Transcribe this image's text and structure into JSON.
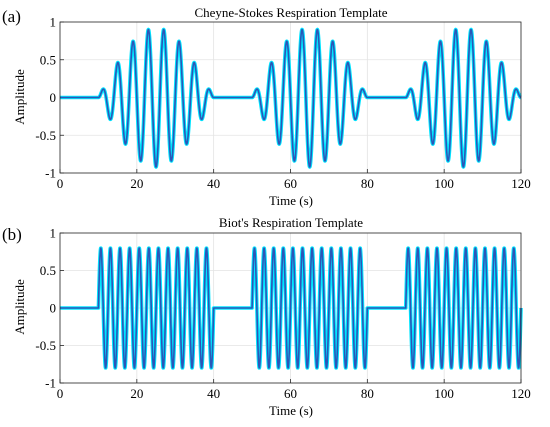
{
  "chart_data": [
    {
      "type": "line",
      "panel_label": "(a)",
      "title": "Cheyne-Stokes Respiration Template",
      "xlabel": "Time (s)",
      "ylabel": "Amplitude",
      "xlim": [
        0,
        120
      ],
      "ylim": [
        -1,
        1
      ],
      "xticks": [
        0,
        20,
        40,
        60,
        80,
        100,
        120
      ],
      "yticks": [
        -1,
        -0.5,
        0,
        0.5,
        1
      ],
      "xtick_labels": [
        "0",
        "20",
        "40",
        "60",
        "80",
        "100",
        "120"
      ],
      "ytick_labels": [
        "-1",
        "-0.5",
        "0",
        "0.5",
        "1"
      ],
      "grid": true,
      "series": [
        {
          "color": "#2b56b8",
          "highlight_color": "#00e5ff",
          "pattern": "crescendo-decrescendo sine bursts, 3 cycles",
          "burst_intervals": [
            [
              10,
              40
            ],
            [
              50,
              80
            ],
            [
              90,
              120
            ]
          ],
          "oscillation_period": 4.0,
          "peak_amplitude": 0.92,
          "baseline": 0
        }
      ]
    },
    {
      "type": "line",
      "panel_label": "(b)",
      "title": "Biot's Respiration Template",
      "xlabel": "Time (s)",
      "ylabel": "Amplitude",
      "xlim": [
        0,
        120
      ],
      "ylim": [
        -1,
        1
      ],
      "xticks": [
        0,
        20,
        40,
        60,
        80,
        100,
        120
      ],
      "yticks": [
        -1,
        -0.5,
        0,
        0.5,
        1
      ],
      "xtick_labels": [
        "0",
        "20",
        "40",
        "60",
        "80",
        "100",
        "120"
      ],
      "ytick_labels": [
        "-1",
        "-0.5",
        "0",
        "0.5",
        "1"
      ],
      "grid": true,
      "series": [
        {
          "color": "#2b56b8",
          "highlight_color": "#00e5ff",
          "pattern": "constant-amplitude sine bursts, 3 cycles",
          "burst_intervals": [
            [
              10,
              40
            ],
            [
              50,
              80
            ],
            [
              90,
              120
            ]
          ],
          "oscillation_period": 2.5,
          "peak_amplitude": 0.8,
          "baseline": 0
        }
      ]
    }
  ]
}
